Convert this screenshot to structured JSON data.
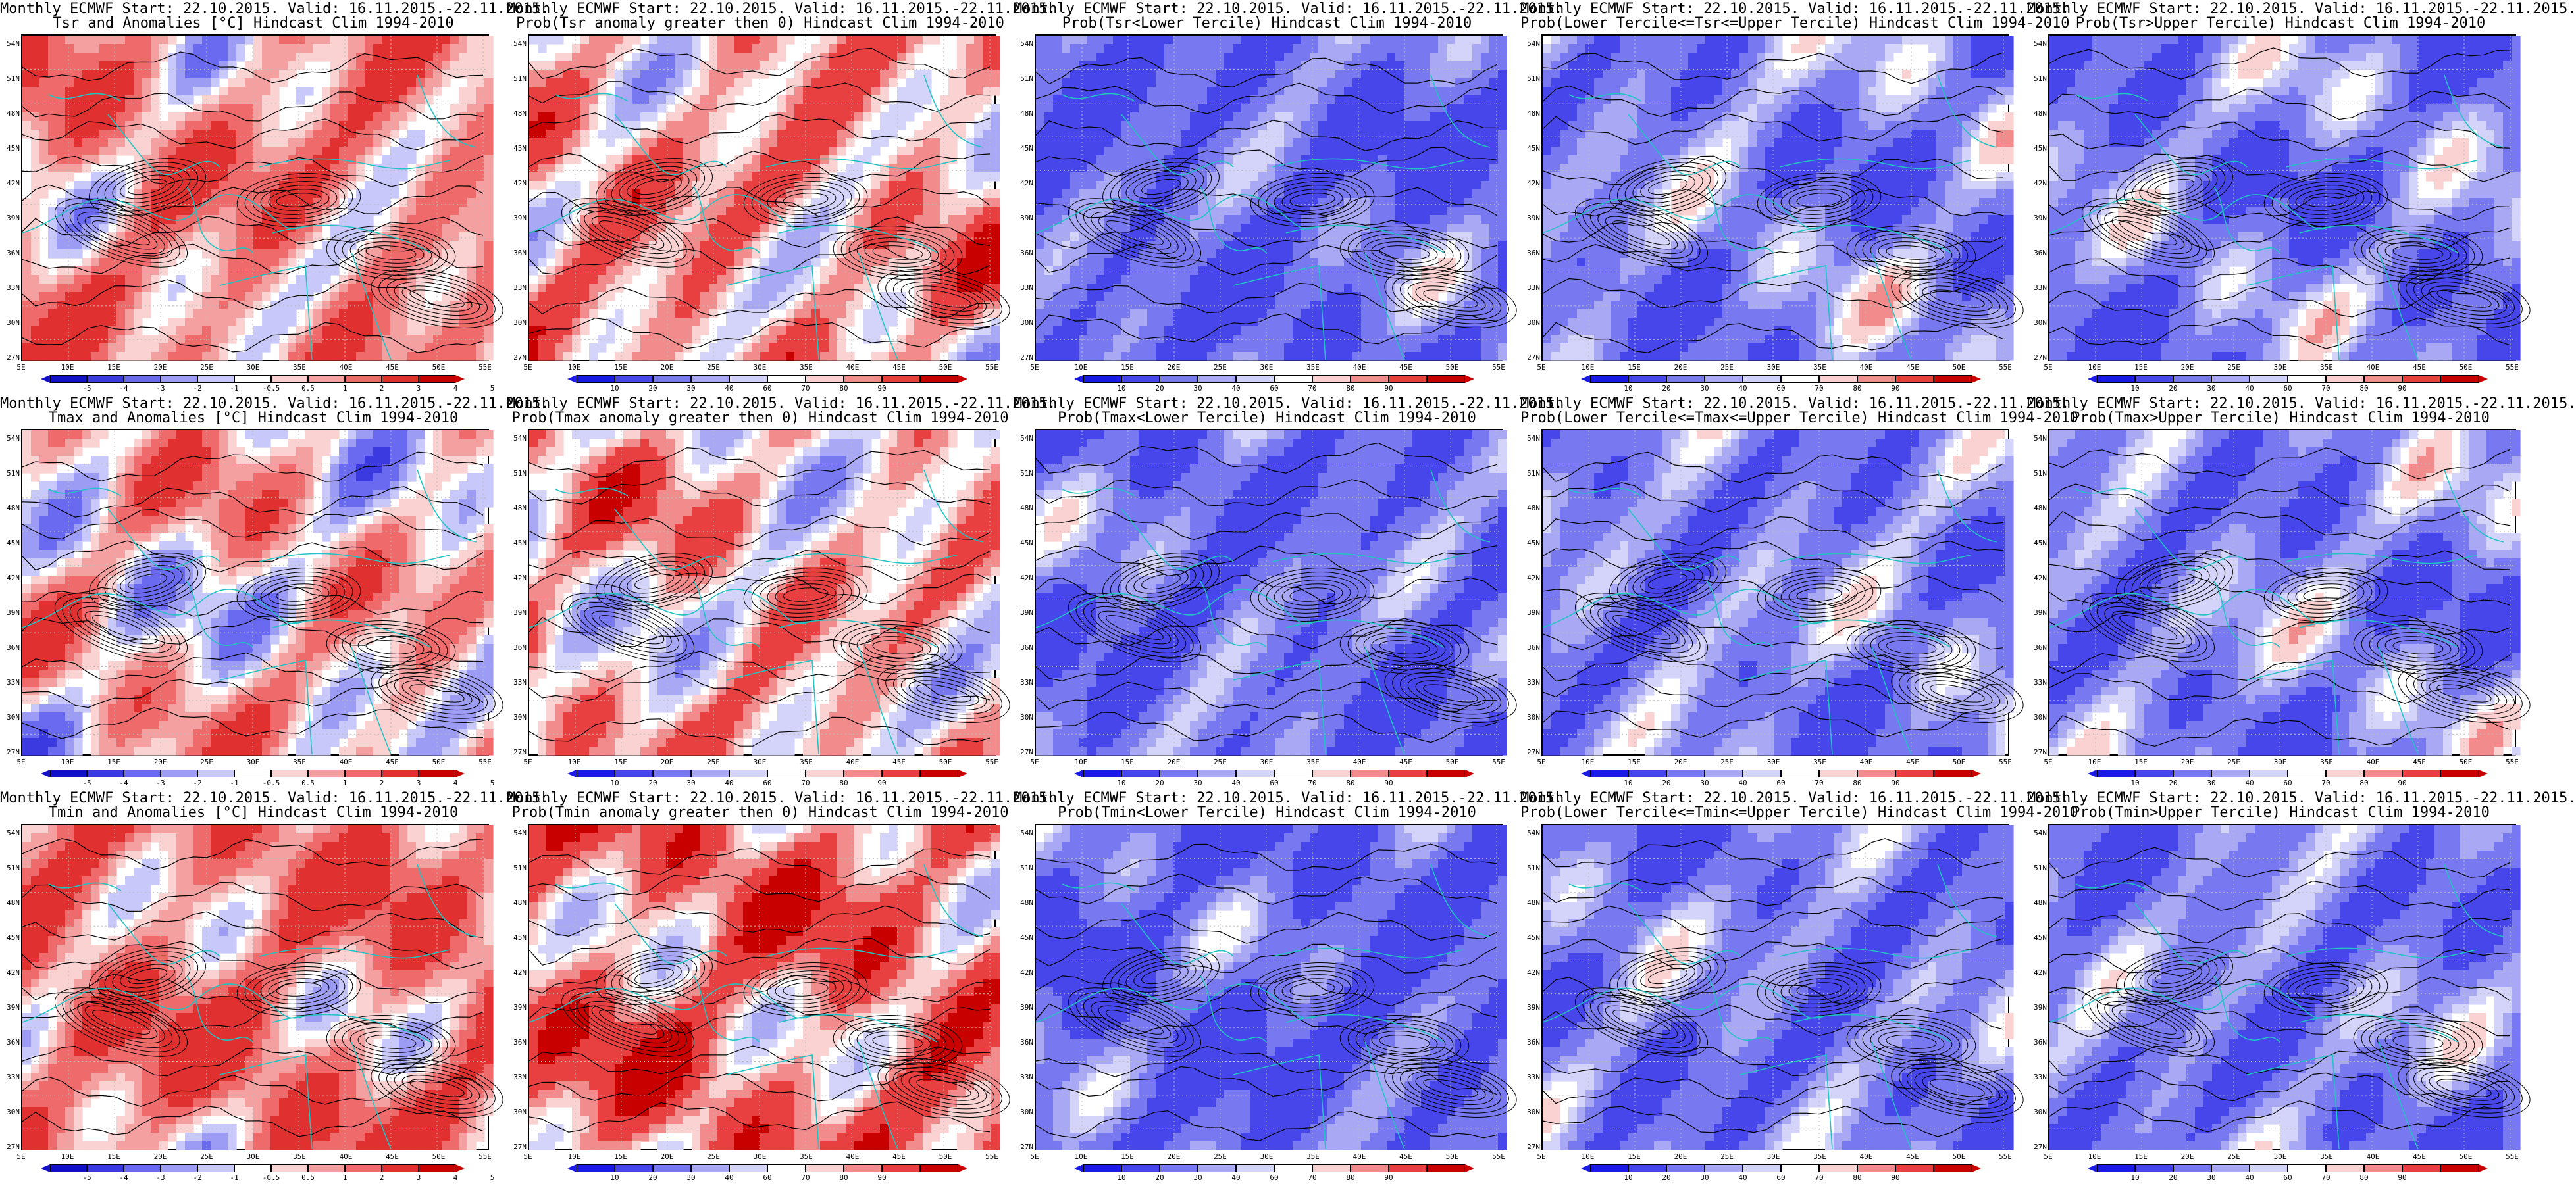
{
  "header_line": "Monthly ECMWF Start: 22.10.2015. Valid: 16.11.2015.-22.11.2015.",
  "lat_labels": [
    "54N",
    "51N",
    "48N",
    "45N",
    "42N",
    "39N",
    "36N",
    "33N",
    "30N",
    "27N"
  ],
  "lon_labels": [
    "5E",
    "10E",
    "15E",
    "20E",
    "25E",
    "30E",
    "35E",
    "40E",
    "45E",
    "50E",
    "55E"
  ],
  "colors": {
    "coast": "#22c3c3",
    "contour": "#000000",
    "anomaly_scale": [
      "#1010c8",
      "#3a3ae0",
      "#6a6af0",
      "#9c9cf5",
      "#c8c8fa",
      "#ffffff",
      "#fad2d2",
      "#f5a0a0",
      "#ef6a6a",
      "#e03030",
      "#c80000"
    ],
    "prob_scale": [
      "#1a1ae6",
      "#4646ea",
      "#7878f0",
      "#a8a8f5",
      "#d4d4fa",
      "#ffffff",
      "#fad2d2",
      "#f28c8c",
      "#e84040",
      "#c80000"
    ]
  },
  "colorbars": {
    "anomaly_tsr": [
      "-5",
      "-4",
      "-3",
      "-2",
      "-1",
      "-0.5",
      "0.5",
      "1",
      "2",
      "3",
      "4",
      "5"
    ],
    "anomaly_tmax": [
      "-5",
      "-4",
      "-3",
      "-2",
      "-1",
      "-0.5",
      "0.5",
      "1",
      "2",
      "3",
      "4",
      "5"
    ],
    "probability": [
      "10",
      "20",
      "30",
      "40",
      "60",
      "70",
      "80",
      "90"
    ]
  },
  "panels": [
    {
      "title2": "Tsr and Anomalies [°C] Hindcast Clim 1994-2010",
      "kind": "anomaly",
      "bias": 0.35
    },
    {
      "title2": "Prob(Tsr anomaly greater then 0) Hindcast Clim 1994-2010",
      "kind": "prob",
      "bias": 0.25
    },
    {
      "title2": "Prob(Tsr<Lower Tercile) Hindcast Clim 1994-2010",
      "kind": "prob",
      "bias": -0.75
    },
    {
      "title2": "Prob(Lower Tercile<=Tsr<=Upper Tercile) Hindcast Clim 1994-2010",
      "kind": "prob",
      "bias": -0.55
    },
    {
      "title2": "Prob(Tsr>Upper Tercile) Hindcast Clim 1994-2010",
      "kind": "prob",
      "bias": -0.6
    },
    {
      "title2": "Tmax and Anomalies [°C] Hindcast Clim 1994-2010",
      "kind": "anomaly",
      "bias": 0.15
    },
    {
      "title2": "Prob(Tmax anomaly greater then 0) Hindcast Clim 1994-2010",
      "kind": "prob",
      "bias": 0.15
    },
    {
      "title2": "Prob(Tmax<Lower Tercile) Hindcast Clim 1994-2010",
      "kind": "prob",
      "bias": -0.7
    },
    {
      "title2": "Prob(Lower Tercile<=Tmax<=Upper Tercile) Hindcast Clim 1994-2010",
      "kind": "prob",
      "bias": -0.55
    },
    {
      "title2": "Prob(Tmax>Upper Tercile) Hindcast Clim 1994-2010",
      "kind": "prob",
      "bias": -0.55
    },
    {
      "title2": "Tmin and Anomalies [°C] Hindcast Clim 1994-2010",
      "kind": "anomaly",
      "bias": 0.45
    },
    {
      "title2": "Prob(Tmin anomaly greater then 0) Hindcast Clim 1994-2010",
      "kind": "prob",
      "bias": 0.4
    },
    {
      "title2": "Prob(Tmin<Lower Tercile) Hindcast Clim 1994-2010",
      "kind": "prob",
      "bias": -0.8
    },
    {
      "title2": "Prob(Lower Tercile<=Tmin<=Upper Tercile) Hindcast Clim 1994-2010",
      "kind": "prob",
      "bias": -0.6
    },
    {
      "title2": "Prob(Tmin>Upper Tercile) Hindcast Clim 1994-2010",
      "kind": "prob",
      "bias": -0.6
    }
  ]
}
